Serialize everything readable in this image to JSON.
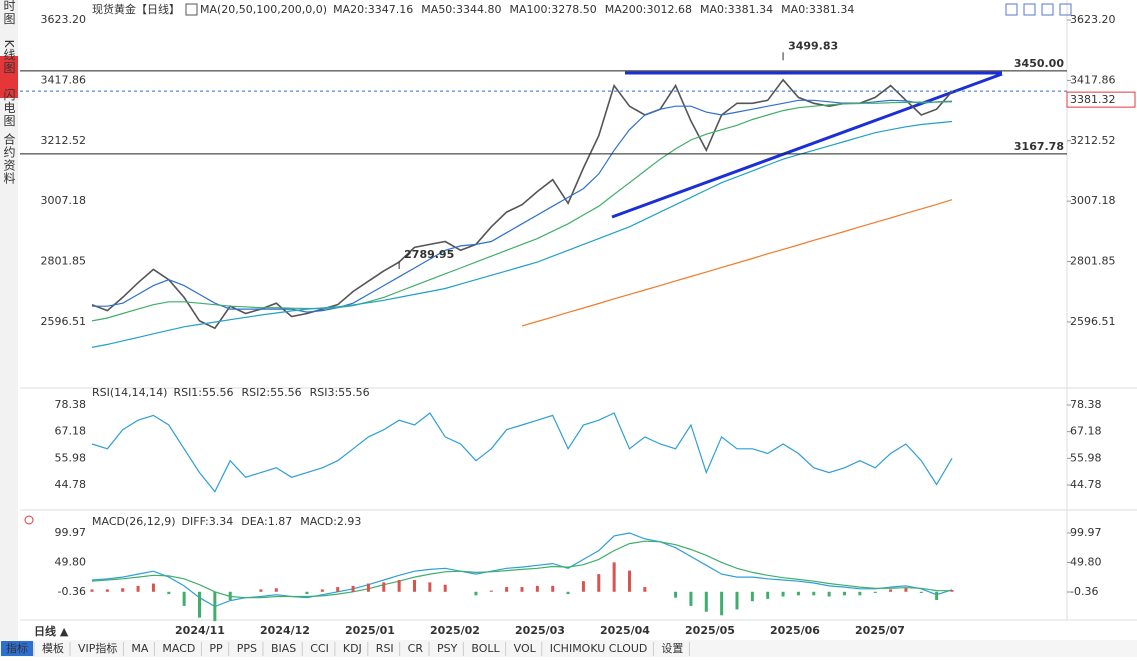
{
  "sidebar": {
    "tabs": [
      "分时图",
      "K线图",
      "闪电图",
      "合约资料"
    ]
  },
  "header": {
    "symbol": "现货黄金",
    "period": "【日线】",
    "ma_params": "MA(20,50,100,200,0,0)"
  },
  "chart_data": [
    {
      "type": "line",
      "name": "price",
      "ylim": [
        2382,
        3623.2
      ],
      "yticks": [
        {
          "value": 3623.2,
          "label": "3623.20"
        },
        3417.86,
        3212.52,
        3007.18,
        2801.85,
        2596.51
      ],
      "x_labels": [
        "2024/11",
        "2024/12",
        "2025/01",
        "2025/02",
        "2025/03",
        "2025/04",
        "2025/05",
        "2025/06",
        "2025/07"
      ],
      "series": [
        {
          "name": "现货黄金",
          "color": "#555555",
          "values": [
            2655,
            2635,
            2680,
            2730,
            2775,
            2740,
            2680,
            2600,
            2575,
            2650,
            2625,
            2640,
            2660,
            2615,
            2625,
            2640,
            2655,
            2700,
            2735,
            2770,
            2800,
            2850,
            2860,
            2870,
            2840,
            2860,
            2920,
            2970,
            2995,
            3040,
            3080,
            3000,
            3120,
            3230,
            3400,
            3330,
            3300,
            3320,
            3400,
            3280,
            3180,
            3300,
            3340,
            3340,
            3350,
            3420,
            3360,
            3340,
            3330,
            3340,
            3340,
            3360,
            3400,
            3350,
            3300,
            3320,
            3380
          ]
        },
        {
          "name": "MA20:3347.16",
          "color": "#2d6fd0",
          "values": [
            2650,
            2650,
            2660,
            2690,
            2720,
            2740,
            2720,
            2690,
            2660,
            2640,
            2640,
            2640,
            2640,
            2640,
            2630,
            2635,
            2645,
            2660,
            2690,
            2720,
            2750,
            2780,
            2810,
            2840,
            2855,
            2860,
            2870,
            2900,
            2930,
            2960,
            2990,
            3020,
            3050,
            3100,
            3180,
            3250,
            3300,
            3320,
            3330,
            3330,
            3310,
            3300,
            3310,
            3320,
            3330,
            3340,
            3350,
            3350,
            3345,
            3340,
            3340,
            3345,
            3350,
            3348,
            3340,
            3345,
            3347
          ]
        },
        {
          "name": "MA50:3344.80",
          "color": "#3fae6a",
          "values": [
            2600,
            2610,
            2625,
            2640,
            2655,
            2665,
            2665,
            2660,
            2655,
            2650,
            2648,
            2645,
            2645,
            2643,
            2642,
            2642,
            2645,
            2652,
            2665,
            2680,
            2700,
            2720,
            2740,
            2760,
            2780,
            2800,
            2820,
            2840,
            2860,
            2880,
            2905,
            2930,
            2960,
            2990,
            3030,
            3070,
            3110,
            3150,
            3185,
            3215,
            3235,
            3250,
            3265,
            3285,
            3300,
            3315,
            3325,
            3330,
            3335,
            3338,
            3340,
            3340,
            3342,
            3343,
            3344,
            3344,
            3345
          ]
        },
        {
          "name": "MA100:3278.50",
          "color": "#22a0c8",
          "values": [
            2510,
            2520,
            2532,
            2544,
            2556,
            2568,
            2580,
            2588,
            2596,
            2604,
            2612,
            2620,
            2627,
            2634,
            2640,
            2644,
            2648,
            2654,
            2662,
            2670,
            2680,
            2690,
            2700,
            2710,
            2725,
            2740,
            2755,
            2770,
            2785,
            2800,
            2820,
            2840,
            2860,
            2880,
            2900,
            2920,
            2945,
            2970,
            2995,
            3020,
            3045,
            3070,
            3090,
            3110,
            3130,
            3150,
            3165,
            3180,
            3195,
            3210,
            3225,
            3240,
            3250,
            3260,
            3268,
            3273,
            3278
          ]
        },
        {
          "name": "MA200:3012.68",
          "color": "#f07b2a",
          "values": [
            null,
            null,
            null,
            null,
            null,
            null,
            null,
            null,
            null,
            null,
            null,
            null,
            null,
            null,
            null,
            null,
            null,
            null,
            null,
            null,
            null,
            null,
            null,
            null,
            null,
            null,
            null,
            null,
            2583,
            2598,
            2613,
            2629,
            2644,
            2659,
            2675,
            2690,
            2705,
            2720,
            2736,
            2751,
            2766,
            2782,
            2797,
            2812,
            2828,
            2843,
            2858,
            2874,
            2889,
            2904,
            2920,
            2935,
            2950,
            2966,
            2981,
            2996,
            3012
          ]
        },
        {
          "name": "MA0:3381.34",
          "color": "#e05aa0",
          "values": []
        },
        {
          "name": "MA0:3381.34",
          "color": "#6a8fd8",
          "values": []
        }
      ],
      "annotations": [
        2789.95,
        3499.83
      ],
      "levels": [
        {
          "value": 3450,
          "label": "3450.00"
        },
        {
          "value": 3167.78,
          "label": "3167.78"
        }
      ],
      "last_price": {
        "value": 3381.32,
        "label": "3381.32"
      }
    },
    {
      "type": "line",
      "name": "rsi",
      "title": "RSI(14,14,14)",
      "ylim": [
        36.38,
        82.58
      ],
      "yticks": [
        78.38,
        67.18,
        55.98,
        44.78
      ],
      "series": [
        {
          "name": "RSI1:55.56",
          "color": "#2d9fd8",
          "values": [
            62,
            60,
            68,
            72,
            74,
            70,
            60,
            50,
            42,
            55,
            48,
            50,
            52,
            48,
            50,
            52,
            55,
            60,
            65,
            68,
            72,
            70,
            75,
            65,
            62,
            55,
            60,
            68,
            70,
            72,
            74,
            60,
            70,
            72,
            75,
            60,
            65,
            62,
            60,
            70,
            50,
            65,
            60,
            60,
            58,
            62,
            58,
            52,
            50,
            52,
            55,
            52,
            58,
            62,
            55,
            45,
            56
          ]
        },
        {
          "name": "RSI2:55.56",
          "color": "#3fae6a",
          "values": []
        },
        {
          "name": "RSI3:55.56",
          "color": "#22a0c8",
          "values": []
        }
      ]
    },
    {
      "type": "macd",
      "name": "macd",
      "title": "MACD(26,12,9)",
      "ylim": [
        -39.5,
        130.6
      ],
      "yticks": [
        99.97,
        {
          "value": 49.8,
          "label": "49.80"
        },
        -0.36
      ],
      "series": [
        {
          "name": "DIFF:3.34",
          "color": "#2d9fd8",
          "values": [
            20,
            22,
            25,
            30,
            35,
            25,
            10,
            -10,
            -25,
            -15,
            -10,
            -8,
            -5,
            -8,
            -10,
            -5,
            0,
            5,
            12,
            20,
            28,
            35,
            38,
            40,
            35,
            30,
            35,
            40,
            42,
            45,
            48,
            40,
            55,
            70,
            95,
            100,
            90,
            85,
            75,
            60,
            45,
            30,
            25,
            25,
            22,
            20,
            18,
            15,
            10,
            8,
            5,
            5,
            8,
            10,
            5,
            -5,
            3.34
          ]
        },
        {
          "name": "DEA:1.87",
          "color": "#3fae6a",
          "values": [
            18,
            20,
            22,
            25,
            28,
            27,
            22,
            12,
            0,
            -8,
            -10,
            -10,
            -8,
            -8,
            -8,
            -7,
            -4,
            0,
            5,
            12,
            18,
            25,
            30,
            34,
            35,
            33,
            34,
            36,
            38,
            40,
            43,
            42,
            46,
            55,
            70,
            82,
            86,
            85,
            80,
            72,
            62,
            50,
            40,
            33,
            28,
            24,
            21,
            18,
            14,
            11,
            8,
            6,
            6,
            7,
            6,
            2,
            1.87
          ]
        },
        {
          "name": "MACD:2.93",
          "color": "#888888",
          "values": [
            4,
            4,
            6,
            10,
            14,
            -4,
            -24,
            -44,
            -50,
            -14,
            0,
            4,
            6,
            0,
            -4,
            4,
            8,
            10,
            14,
            16,
            20,
            20,
            16,
            12,
            0,
            -6,
            2,
            8,
            8,
            10,
            10,
            -4,
            18,
            30,
            50,
            36,
            8,
            0,
            -10,
            -24,
            -34,
            -40,
            -30,
            -16,
            -12,
            -8,
            -6,
            -6,
            -8,
            -6,
            -6,
            -2,
            4,
            6,
            -2,
            -14,
            2.93
          ],
          "bars": true
        }
      ]
    }
  ],
  "footer": {
    "period": "日线 ▲",
    "tools": [
      "指标",
      "模板",
      "VIP指标",
      "MA",
      "MACD",
      "PP",
      "PPS",
      "BIAS",
      "CCI",
      "KDJ",
      "RSI",
      "CR",
      "PSY",
      "BOLL",
      "VOL",
      "ICHIMOKU CLOUD",
      "设置"
    ]
  }
}
